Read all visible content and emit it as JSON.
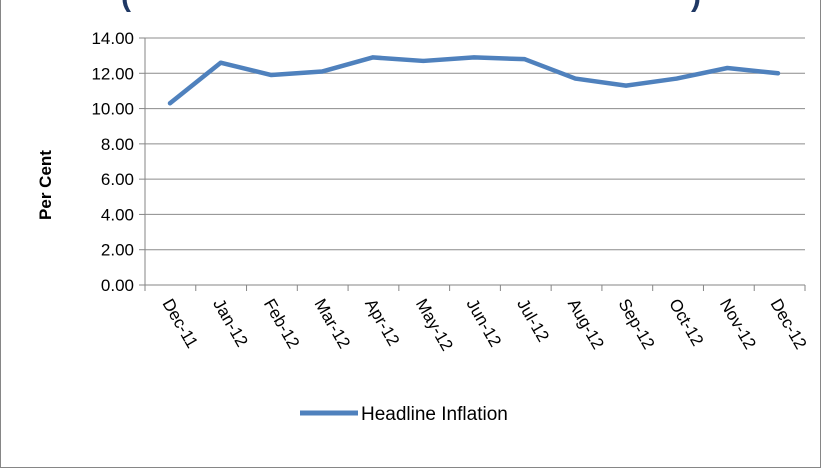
{
  "chart_data": {
    "type": "line",
    "title": "(",
    "title_tail": ")",
    "ylabel": "Per Cent",
    "xlabel": "",
    "categories": [
      "Dec-11",
      "Jan-12",
      "Feb-12",
      "Mar-12",
      "Apr-12",
      "May-12",
      "Jun-12",
      "Jul-12",
      "Aug-12",
      "Sep-12",
      "Oct-12",
      "Nov-12",
      "Dec-12"
    ],
    "y_ticks": [
      "0.00",
      "2.00",
      "4.00",
      "6.00",
      "8.00",
      "10.00",
      "12.00",
      "14.00"
    ],
    "ylim": [
      0,
      14
    ],
    "grid": true,
    "legend_position": "bottom-center",
    "series": [
      {
        "name": "Headline Inflation",
        "color": "#4f81bd",
        "values": [
          10.3,
          12.6,
          11.9,
          12.1,
          12.9,
          12.7,
          12.9,
          12.8,
          11.7,
          11.3,
          11.7,
          12.3,
          12.0
        ]
      }
    ]
  }
}
